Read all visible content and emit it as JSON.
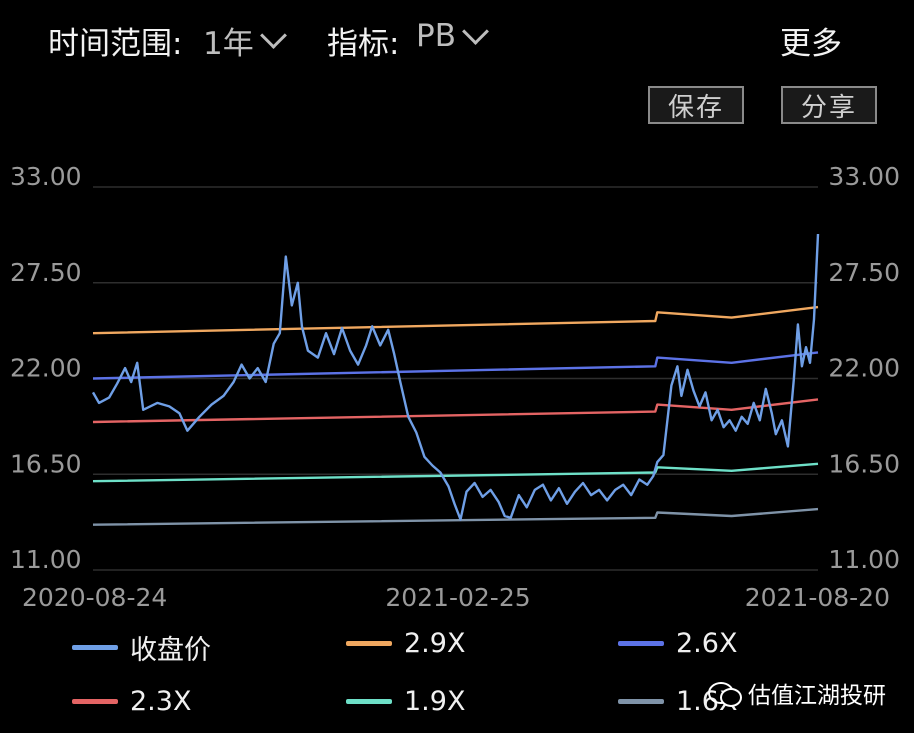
{
  "toolbar": {
    "range_label": "时间范围:",
    "range_value": "1年",
    "metric_label": "指标:",
    "metric_value": "PB",
    "more_label": "更多",
    "save_label": "保存",
    "share_label": "分享"
  },
  "watermark": {
    "text": "估值江湖投研"
  },
  "colors": {
    "background": "#000000",
    "grid": "#2e2e2e",
    "close": "#6f9fe6",
    "pb29": "#f0a860",
    "pb26": "#5c72e6",
    "pb23": "#e46464",
    "pb19": "#6ee0c8",
    "pb16": "#7f93a8"
  },
  "chart_data": {
    "type": "line",
    "title": "",
    "xlabel": "",
    "ylabel": "",
    "ylim": [
      11,
      33
    ],
    "y_ticks": [
      "33.00",
      "27.50",
      "22.00",
      "16.50",
      "11.00"
    ],
    "x_ticks": [
      "2020-08-24",
      "2021-02-25",
      "2021-08-20"
    ],
    "x_range": [
      "2020-08-24",
      "2021-08-20"
    ],
    "grid": "horizontal",
    "legend_position": "bottom",
    "series": [
      {
        "name": "收盘价",
        "color": "#6f9fe6",
        "points": [
          [
            "2020-08-24",
            21.2
          ],
          [
            "2020-08-27",
            20.6
          ],
          [
            "2020-09-01",
            20.9
          ],
          [
            "2020-09-05",
            21.7
          ],
          [
            "2020-09-09",
            22.6
          ],
          [
            "2020-09-12",
            21.8
          ],
          [
            "2020-09-15",
            22.9
          ],
          [
            "2020-09-18",
            20.2
          ],
          [
            "2020-09-25",
            20.6
          ],
          [
            "2020-10-01",
            20.4
          ],
          [
            "2020-10-06",
            20.0
          ],
          [
            "2020-10-10",
            19.0
          ],
          [
            "2020-10-16",
            19.8
          ],
          [
            "2020-10-22",
            20.5
          ],
          [
            "2020-10-28",
            21.0
          ],
          [
            "2020-11-02",
            21.8
          ],
          [
            "2020-11-06",
            22.8
          ],
          [
            "2020-11-10",
            22.0
          ],
          [
            "2020-11-14",
            22.6
          ],
          [
            "2020-11-18",
            21.8
          ],
          [
            "2020-11-22",
            24.0
          ],
          [
            "2020-11-25",
            24.6
          ],
          [
            "2020-11-28",
            29.0
          ],
          [
            "2020-12-01",
            26.2
          ],
          [
            "2020-12-04",
            27.5
          ],
          [
            "2020-12-06",
            25.0
          ],
          [
            "2020-12-09",
            23.6
          ],
          [
            "2020-12-14",
            23.2
          ],
          [
            "2020-12-18",
            24.6
          ],
          [
            "2020-12-22",
            23.4
          ],
          [
            "2020-12-26",
            24.9
          ],
          [
            "2020-12-30",
            23.6
          ],
          [
            "2021-01-03",
            22.8
          ],
          [
            "2021-01-07",
            23.9
          ],
          [
            "2021-01-10",
            25.0
          ],
          [
            "2021-01-14",
            23.9
          ],
          [
            "2021-01-18",
            24.8
          ],
          [
            "2021-01-21",
            23.4
          ],
          [
            "2021-01-24",
            21.8
          ],
          [
            "2021-01-28",
            19.8
          ],
          [
            "2021-02-01",
            18.9
          ],
          [
            "2021-02-05",
            17.5
          ],
          [
            "2021-02-09",
            17.0
          ],
          [
            "2021-02-13",
            16.6
          ],
          [
            "2021-02-17",
            15.8
          ],
          [
            "2021-02-20",
            14.8
          ],
          [
            "2021-02-23",
            13.9
          ],
          [
            "2021-02-26",
            15.5
          ],
          [
            "2021-03-02",
            16.0
          ],
          [
            "2021-03-06",
            15.2
          ],
          [
            "2021-03-10",
            15.6
          ],
          [
            "2021-03-14",
            14.9
          ],
          [
            "2021-03-17",
            14.1
          ],
          [
            "2021-03-20",
            14.0
          ],
          [
            "2021-03-24",
            15.3
          ],
          [
            "2021-03-28",
            14.6
          ],
          [
            "2021-04-01",
            15.6
          ],
          [
            "2021-04-05",
            15.9
          ],
          [
            "2021-04-09",
            15.0
          ],
          [
            "2021-04-13",
            15.7
          ],
          [
            "2021-04-17",
            14.8
          ],
          [
            "2021-04-21",
            15.5
          ],
          [
            "2021-04-25",
            16.0
          ],
          [
            "2021-04-29",
            15.3
          ],
          [
            "2021-05-03",
            15.6
          ],
          [
            "2021-05-07",
            15.0
          ],
          [
            "2021-05-11",
            15.6
          ],
          [
            "2021-05-15",
            15.9
          ],
          [
            "2021-05-19",
            15.3
          ],
          [
            "2021-05-23",
            16.2
          ],
          [
            "2021-05-27",
            15.9
          ],
          [
            "2021-05-30",
            16.4
          ],
          [
            "2021-06-01",
            17.2
          ],
          [
            "2021-06-04",
            17.6
          ],
          [
            "2021-06-06",
            19.6
          ],
          [
            "2021-06-08",
            21.6
          ],
          [
            "2021-06-11",
            22.7
          ],
          [
            "2021-06-13",
            21.0
          ],
          [
            "2021-06-16",
            22.5
          ],
          [
            "2021-06-19",
            21.3
          ],
          [
            "2021-06-22",
            20.4
          ],
          [
            "2021-06-25",
            21.2
          ],
          [
            "2021-06-28",
            19.6
          ],
          [
            "2021-07-01",
            20.2
          ],
          [
            "2021-07-04",
            19.2
          ],
          [
            "2021-07-07",
            19.6
          ],
          [
            "2021-07-10",
            19.0
          ],
          [
            "2021-07-13",
            19.8
          ],
          [
            "2021-07-16",
            19.4
          ],
          [
            "2021-07-19",
            20.6
          ],
          [
            "2021-07-22",
            19.6
          ],
          [
            "2021-07-25",
            21.4
          ],
          [
            "2021-07-28",
            20.0
          ],
          [
            "2021-07-30",
            18.8
          ],
          [
            "2021-08-02",
            19.6
          ],
          [
            "2021-08-05",
            18.1
          ],
          [
            "2021-08-08",
            22.0
          ],
          [
            "2021-08-10",
            25.1
          ],
          [
            "2021-08-12",
            22.7
          ],
          [
            "2021-08-14",
            23.8
          ],
          [
            "2021-08-16",
            22.9
          ],
          [
            "2021-08-18",
            25.4
          ],
          [
            "2021-08-20",
            30.3
          ]
        ]
      },
      {
        "name": "2.9X",
        "color": "#f0a860",
        "points": [
          [
            "2020-08-24",
            24.6
          ],
          [
            "2021-05-31",
            25.3
          ],
          [
            "2021-06-01",
            25.8
          ],
          [
            "2021-07-08",
            25.5
          ],
          [
            "2021-08-20",
            26.1
          ]
        ]
      },
      {
        "name": "2.6X",
        "color": "#5c72e6",
        "points": [
          [
            "2020-08-24",
            22.0
          ],
          [
            "2021-05-31",
            22.7
          ],
          [
            "2021-06-01",
            23.2
          ],
          [
            "2021-07-08",
            22.9
          ],
          [
            "2021-08-20",
            23.5
          ]
        ]
      },
      {
        "name": "2.3X",
        "color": "#e46464",
        "points": [
          [
            "2020-08-24",
            19.5
          ],
          [
            "2021-05-31",
            20.1
          ],
          [
            "2021-06-01",
            20.5
          ],
          [
            "2021-07-08",
            20.2
          ],
          [
            "2021-08-20",
            20.8
          ]
        ]
      },
      {
        "name": "1.9X",
        "color": "#6ee0c8",
        "points": [
          [
            "2020-08-24",
            16.1
          ],
          [
            "2021-05-31",
            16.6
          ],
          [
            "2021-06-01",
            16.9
          ],
          [
            "2021-07-08",
            16.7
          ],
          [
            "2021-08-20",
            17.1
          ]
        ]
      },
      {
        "name": "1.6X",
        "color": "#7f93a8",
        "points": [
          [
            "2020-08-24",
            13.6
          ],
          [
            "2021-05-31",
            14.0
          ],
          [
            "2021-06-01",
            14.3
          ],
          [
            "2021-07-08",
            14.1
          ],
          [
            "2021-08-20",
            14.5
          ]
        ]
      }
    ]
  }
}
